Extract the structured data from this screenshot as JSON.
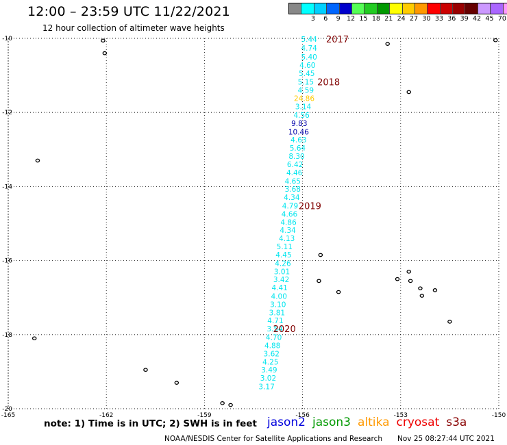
{
  "header": {
    "title": "12:00 – 23:59 UTC 11/22/2021",
    "subtitle": "12 hour collection of altimeter wave heights"
  },
  "color_scale": {
    "unit": "(ft)",
    "swatches": [
      "#888888",
      "#00ffff",
      "#00d0ff",
      "#0066ff",
      "#0000cc",
      "#55ff55",
      "#22cc22",
      "#009900",
      "#ffff00",
      "#ffcc00",
      "#ff9900",
      "#ff0000",
      "#cc0000",
      "#990000",
      "#660000",
      "#cc99ff",
      "#aa66ff",
      "#ff99ff",
      "#000000"
    ],
    "ticks": [
      "3",
      "6",
      "9",
      "12",
      "15",
      "18",
      "21",
      "24",
      "27",
      "30",
      "33",
      "36",
      "39",
      "42",
      "45",
      "70"
    ]
  },
  "map": {
    "lon_range": [
      -165,
      -150
    ],
    "lat_range": [
      -20,
      -10
    ],
    "lon_ticks": [
      "-165",
      "-162",
      "-159",
      "-156",
      "-153",
      "-150"
    ],
    "lat_ticks": [
      "-10",
      "-12",
      "-14",
      "-16",
      "-18",
      "-20"
    ],
    "grid": "dotted",
    "islands": [
      {
        "lon": -162.1,
        "lat": -10.06
      },
      {
        "lon": -162.05,
        "lat": -10.4
      },
      {
        "lon": -164.1,
        "lat": -13.3
      },
      {
        "lon": -164.2,
        "lat": -18.1
      },
      {
        "lon": -160.8,
        "lat": -18.95
      },
      {
        "lon": -159.85,
        "lat": -19.3
      },
      {
        "lon": -158.45,
        "lat": -19.85
      },
      {
        "lon": -158.2,
        "lat": -19.9
      },
      {
        "lon": -153.4,
        "lat": -10.15
      },
      {
        "lon": -152.75,
        "lat": -11.45
      },
      {
        "lon": -150.1,
        "lat": -10.05
      },
      {
        "lon": -155.45,
        "lat": -15.85
      },
      {
        "lon": -155.5,
        "lat": -16.55
      },
      {
        "lon": -154.9,
        "lat": -16.85
      },
      {
        "lon": -153.1,
        "lat": -16.5
      },
      {
        "lon": -152.75,
        "lat": -16.3
      },
      {
        "lon": -152.7,
        "lat": -16.55
      },
      {
        "lon": -152.4,
        "lat": -16.75
      },
      {
        "lon": -152.35,
        "lat": -16.95
      },
      {
        "lon": -151.95,
        "lat": -16.8
      },
      {
        "lon": -151.5,
        "lat": -17.65
      }
    ]
  },
  "observations": [
    {
      "text": "5.44",
      "lon": -155.8,
      "lat": -10.02,
      "color": "#00e5ee"
    },
    {
      "text": "4.74",
      "lon": -155.8,
      "lat": -10.26,
      "color": "#00e5ee"
    },
    {
      "text": "5.40",
      "lon": -155.8,
      "lat": -10.5,
      "color": "#00e5ee"
    },
    {
      "text": "4.60",
      "lon": -155.85,
      "lat": -10.72,
      "color": "#00e5ee"
    },
    {
      "text": "5.45",
      "lon": -155.87,
      "lat": -10.94,
      "color": "#00e5ee"
    },
    {
      "text": "5.15",
      "lon": -155.9,
      "lat": -11.17,
      "color": "#00e5ee"
    },
    {
      "text": "4.59",
      "lon": -155.9,
      "lat": -11.4,
      "color": "#00e5ee"
    },
    {
      "text": "24.86",
      "lon": -155.95,
      "lat": -11.62,
      "color": "#ffcc00"
    },
    {
      "text": "3.14",
      "lon": -155.98,
      "lat": -11.84,
      "color": "#00e5ee"
    },
    {
      "text": "4.56",
      "lon": -156.03,
      "lat": -12.07,
      "color": "#00e5ee"
    },
    {
      "text": "9.83",
      "lon": -156.1,
      "lat": -12.29,
      "color": "#0000aa"
    },
    {
      "text": "10.46",
      "lon": -156.12,
      "lat": -12.52,
      "color": "#0000aa"
    },
    {
      "text": "4.63",
      "lon": -156.12,
      "lat": -12.74,
      "color": "#00e5ee"
    },
    {
      "text": "5.64",
      "lon": -156.15,
      "lat": -12.96,
      "color": "#00e5ee"
    },
    {
      "text": "8.30",
      "lon": -156.18,
      "lat": -13.18,
      "color": "#00e5ee"
    },
    {
      "text": "6.42",
      "lon": -156.23,
      "lat": -13.4,
      "color": "#00e5ee"
    },
    {
      "text": "4.46",
      "lon": -156.25,
      "lat": -13.62,
      "color": "#00e5ee"
    },
    {
      "text": "4.65",
      "lon": -156.3,
      "lat": -13.85,
      "color": "#00e5ee"
    },
    {
      "text": "3.68",
      "lon": -156.3,
      "lat": -14.07,
      "color": "#00e5ee"
    },
    {
      "text": "4.34",
      "lon": -156.33,
      "lat": -14.29,
      "color": "#00e5ee"
    },
    {
      "text": "4.79",
      "lon": -156.38,
      "lat": -14.52,
      "color": "#00e5ee"
    },
    {
      "text": "4.66",
      "lon": -156.4,
      "lat": -14.74,
      "color": "#00e5ee"
    },
    {
      "text": "4.86",
      "lon": -156.43,
      "lat": -14.96,
      "color": "#00e5ee"
    },
    {
      "text": "4.34",
      "lon": -156.45,
      "lat": -15.18,
      "color": "#00e5ee"
    },
    {
      "text": "4.13",
      "lon": -156.48,
      "lat": -15.4,
      "color": "#00e5ee"
    },
    {
      "text": "5.11",
      "lon": -156.55,
      "lat": -15.62,
      "color": "#00e5ee"
    },
    {
      "text": "4.45",
      "lon": -156.58,
      "lat": -15.84,
      "color": "#00e5ee"
    },
    {
      "text": "4.26",
      "lon": -156.6,
      "lat": -16.07,
      "color": "#00e5ee"
    },
    {
      "text": "3.01",
      "lon": -156.63,
      "lat": -16.29,
      "color": "#00e5ee"
    },
    {
      "text": "3.42",
      "lon": -156.65,
      "lat": -16.51,
      "color": "#00e5ee"
    },
    {
      "text": "4.41",
      "lon": -156.7,
      "lat": -16.73,
      "color": "#00e5ee"
    },
    {
      "text": "4.00",
      "lon": -156.72,
      "lat": -16.96,
      "color": "#00e5ee"
    },
    {
      "text": "3.10",
      "lon": -156.75,
      "lat": -17.18,
      "color": "#00e5ee"
    },
    {
      "text": "3.81",
      "lon": -156.78,
      "lat": -17.4,
      "color": "#00e5ee"
    },
    {
      "text": "4.71",
      "lon": -156.83,
      "lat": -17.62,
      "color": "#00e5ee"
    },
    {
      "text": "3.54",
      "lon": -156.85,
      "lat": -17.84,
      "color": "#00e5ee"
    },
    {
      "text": "4.70",
      "lon": -156.88,
      "lat": -18.07,
      "color": "#00e5ee"
    },
    {
      "text": "4.88",
      "lon": -156.92,
      "lat": -18.29,
      "color": "#00e5ee"
    },
    {
      "text": "3.62",
      "lon": -156.95,
      "lat": -18.51,
      "color": "#00e5ee"
    },
    {
      "text": "4.25",
      "lon": -156.98,
      "lat": -18.73,
      "color": "#00e5ee"
    },
    {
      "text": "3.49",
      "lon": -157.02,
      "lat": -18.95,
      "color": "#00e5ee"
    },
    {
      "text": "3.02",
      "lon": -157.05,
      "lat": -19.17,
      "color": "#00e5ee"
    },
    {
      "text": "3.17",
      "lon": -157.1,
      "lat": -19.4,
      "color": "#00e5ee"
    }
  ],
  "time_labels": [
    {
      "text": "2017",
      "lon": -155.28,
      "lat": -10.02
    },
    {
      "text": "2018",
      "lon": -155.55,
      "lat": -11.17
    },
    {
      "text": "2019",
      "lon": -156.12,
      "lat": -14.52
    },
    {
      "text": "2020",
      "lon": -156.9,
      "lat": -17.84
    }
  ],
  "footer": {
    "note": "note:  1) Time is in UTC;  2) SWH is in feet",
    "satellites": [
      {
        "name": "jason2",
        "color": "#0000dd"
      },
      {
        "name": "jason3",
        "color": "#009900"
      },
      {
        "name": "altika",
        "color": "#ff9900"
      },
      {
        "name": "cryosat",
        "color": "#ee0000"
      },
      {
        "name": "s3a",
        "color": "#880000"
      }
    ],
    "credit": "NOAA/NESDIS Center for Satellite Applications and Research",
    "timestamp": "Nov 25 08:27:44 UTC 2021"
  }
}
